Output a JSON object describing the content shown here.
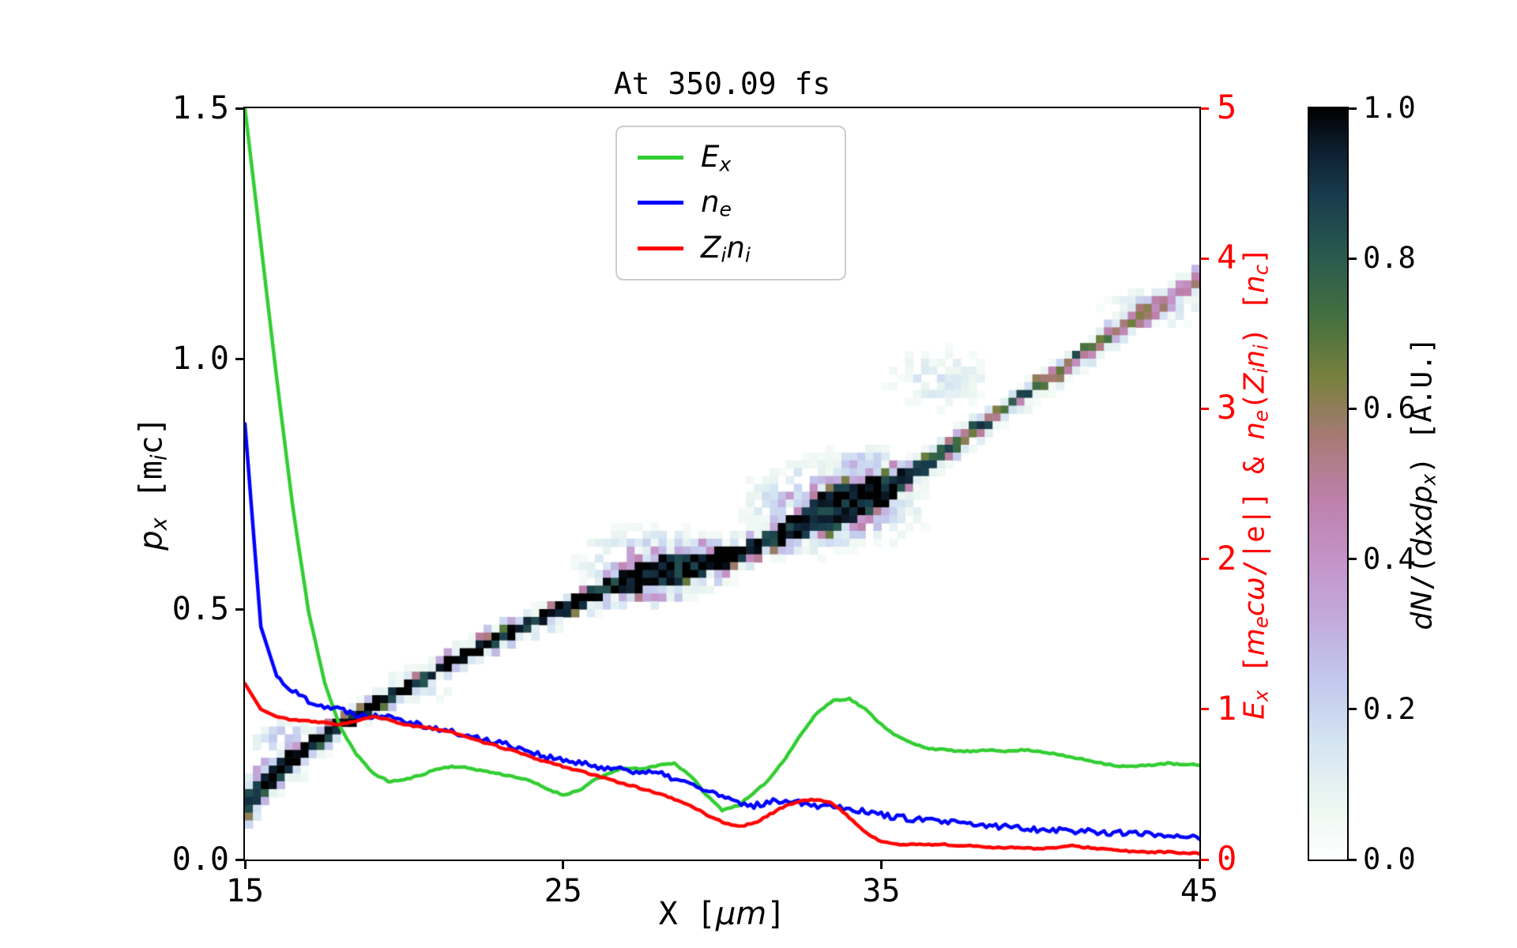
{
  "chart_data": {
    "type": "line+heatmap",
    "title": "At 350.09 fs",
    "axes": {
      "x": {
        "label_plain": "X [μm]",
        "min": 15,
        "max": 45,
        "ticks": [
          {
            "v": 15,
            "label": "15"
          },
          {
            "v": 25,
            "label": "25"
          },
          {
            "v": 35,
            "label": "35"
          },
          {
            "v": 45,
            "label": "45"
          }
        ]
      },
      "y_left": {
        "label_plain": "p_x [m_i c]",
        "min": 0.0,
        "max": 1.5,
        "ticks": [
          {
            "v": 0.0,
            "label": "0.0"
          },
          {
            "v": 0.5,
            "label": "0.5"
          },
          {
            "v": 1.0,
            "label": "1.0"
          },
          {
            "v": 1.5,
            "label": "1.5"
          }
        ]
      },
      "y_right": {
        "label_plain": "E_x [m_e cω/|e|] & n_e(Z_i n_i) [n_c]",
        "min": 0,
        "max": 5,
        "color": "#ff0000",
        "ticks": [
          {
            "v": 0,
            "label": "0"
          },
          {
            "v": 1,
            "label": "1"
          },
          {
            "v": 2,
            "label": "2"
          },
          {
            "v": 3,
            "label": "3"
          },
          {
            "v": 4,
            "label": "4"
          },
          {
            "v": 5,
            "label": "5"
          }
        ]
      }
    },
    "legend": [
      {
        "key": "Ex",
        "color": "#32cd32",
        "parts": [
          {
            "t": "E",
            "i": 1
          },
          {
            "t": "x",
            "i": 1,
            "s": 1
          }
        ]
      },
      {
        "key": "ne",
        "color": "#0000ff",
        "parts": [
          {
            "t": "n",
            "i": 1
          },
          {
            "t": "e",
            "i": 1,
            "s": 1
          }
        ]
      },
      {
        "key": "Zini",
        "color": "#ff0000",
        "parts": [
          {
            "t": "Z",
            "i": 1
          },
          {
            "t": "i",
            "i": 1,
            "s": 1
          },
          {
            "t": "n",
            "i": 1
          },
          {
            "t": "i",
            "i": 1,
            "s": 1
          }
        ]
      }
    ],
    "series": {
      "x": {
        "start": 15,
        "step": 0.5,
        "n": 61
      },
      "axis": "right",
      "list": [
        {
          "name": "Ex",
          "color": "#32cd32",
          "noise": 0.005,
          "values": [
            5.0,
            4.1,
            3.2,
            2.35,
            1.65,
            1.18,
            0.88,
            0.7,
            0.58,
            0.52,
            0.53,
            0.56,
            0.6,
            0.62,
            0.61,
            0.59,
            0.57,
            0.55,
            0.52,
            0.47,
            0.43,
            0.46,
            0.53,
            0.58,
            0.61,
            0.6,
            0.63,
            0.64,
            0.56,
            0.43,
            0.33,
            0.36,
            0.44,
            0.54,
            0.68,
            0.84,
            0.98,
            1.06,
            1.07,
            1.0,
            0.9,
            0.82,
            0.77,
            0.74,
            0.73,
            0.72,
            0.72,
            0.73,
            0.72,
            0.73,
            0.72,
            0.7,
            0.68,
            0.66,
            0.64,
            0.62,
            0.62,
            0.63,
            0.64,
            0.63,
            0.63
          ]
        },
        {
          "name": "ne",
          "color": "#0000ff",
          "noise": 0.02,
          "values": [
            2.9,
            1.55,
            1.22,
            1.12,
            1.06,
            1.02,
            1.0,
            0.97,
            0.95,
            0.97,
            0.93,
            0.9,
            0.87,
            0.85,
            0.82,
            0.8,
            0.78,
            0.75,
            0.72,
            0.68,
            0.66,
            0.64,
            0.62,
            0.61,
            0.6,
            0.58,
            0.57,
            0.54,
            0.5,
            0.46,
            0.42,
            0.37,
            0.36,
            0.38,
            0.4,
            0.38,
            0.36,
            0.36,
            0.34,
            0.32,
            0.3,
            0.28,
            0.27,
            0.26,
            0.25,
            0.24,
            0.23,
            0.22,
            0.22,
            0.21,
            0.2,
            0.2,
            0.19,
            0.19,
            0.18,
            0.18,
            0.17,
            0.17,
            0.16,
            0.16,
            0.15
          ]
        },
        {
          "name": "Zini",
          "color": "#ff0000",
          "noise": 0.005,
          "values": [
            1.17,
            1.0,
            0.95,
            0.93,
            0.92,
            0.91,
            0.9,
            0.92,
            0.95,
            0.93,
            0.9,
            0.88,
            0.87,
            0.85,
            0.81,
            0.78,
            0.75,
            0.72,
            0.68,
            0.65,
            0.62,
            0.59,
            0.56,
            0.53,
            0.5,
            0.47,
            0.44,
            0.4,
            0.36,
            0.3,
            0.25,
            0.22,
            0.24,
            0.3,
            0.36,
            0.39,
            0.4,
            0.37,
            0.28,
            0.18,
            0.12,
            0.1,
            0.1,
            0.1,
            0.1,
            0.09,
            0.09,
            0.08,
            0.08,
            0.08,
            0.07,
            0.08,
            0.09,
            0.08,
            0.07,
            0.06,
            0.05,
            0.05,
            0.05,
            0.04,
            0.04
          ]
        }
      ]
    },
    "heatmap": {
      "x": {
        "start": 15,
        "step": 1,
        "n": 31
      },
      "center": [
        0.115,
        0.175,
        0.225,
        0.27,
        0.305,
        0.34,
        0.375,
        0.41,
        0.445,
        0.475,
        0.5,
        0.53,
        0.555,
        0.575,
        0.585,
        0.6,
        0.625,
        0.655,
        0.69,
        0.715,
        0.73,
        0.77,
        0.815,
        0.86,
        0.905,
        0.95,
        0.995,
        1.04,
        1.08,
        1.12,
        1.16
      ],
      "halfwidth": [
        0.025,
        0.02,
        0.015,
        0.013,
        0.012,
        0.012,
        0.012,
        0.012,
        0.012,
        0.012,
        0.012,
        0.013,
        0.02,
        0.03,
        0.028,
        0.018,
        0.014,
        0.02,
        0.035,
        0.04,
        0.03,
        0.015,
        0.013,
        0.013,
        0.012,
        0.012,
        0.012,
        0.013,
        0.013,
        0.014,
        0.015
      ],
      "intensity": [
        0.92,
        0.96,
        1,
        1,
        1,
        1,
        1,
        1,
        1,
        1,
        1,
        1,
        1,
        1,
        1,
        1,
        1,
        1,
        1,
        1,
        1,
        0.95,
        0.9,
        0.9,
        0.85,
        0.8,
        0.8,
        0.75,
        0.72,
        0.7,
        0.7
      ],
      "blobs": [
        {
          "x": 16.3,
          "p": 0.22,
          "rx": 0.8,
          "ry": 0.05,
          "a": 0.45
        },
        {
          "x": 20.5,
          "p": 0.35,
          "rx": 0.9,
          "ry": 0.03,
          "a": 0.25
        },
        {
          "x": 27.9,
          "p": 0.59,
          "rx": 1.7,
          "ry": 0.05,
          "a": 0.6
        },
        {
          "x": 29.6,
          "p": 0.6,
          "rx": 0.9,
          "ry": 0.025,
          "a": 0.4
        },
        {
          "x": 33.6,
          "p": 0.71,
          "rx": 1.9,
          "ry": 0.06,
          "a": 0.75
        },
        {
          "x": 34.5,
          "p": 0.79,
          "rx": 1.1,
          "ry": 0.03,
          "a": 0.35
        },
        {
          "x": 36.9,
          "p": 0.96,
          "rx": 1.4,
          "ry": 0.05,
          "a": 0.2
        },
        {
          "x": 43.6,
          "p": 1.1,
          "rx": 1.2,
          "ry": 0.03,
          "a": 0.3
        }
      ]
    },
    "colorbar": {
      "label_plain": "dN/(dxdp_x) [A.U.]",
      "min": 0.0,
      "max": 1.0,
      "ticks": [
        {
          "v": 1.0,
          "label": "1.0"
        },
        {
          "v": 0.8,
          "label": "0.8"
        },
        {
          "v": 0.6,
          "label": "0.6"
        },
        {
          "v": 0.4,
          "label": "0.4"
        },
        {
          "v": 0.2,
          "label": "0.2"
        },
        {
          "v": 0.0,
          "label": "0.0"
        }
      ],
      "stops": [
        [
          0.0,
          "#ffffff"
        ],
        [
          0.07,
          "#edf7f2"
        ],
        [
          0.15,
          "#d6e6f2"
        ],
        [
          0.23,
          "#c3cbee"
        ],
        [
          0.31,
          "#c2aede"
        ],
        [
          0.4,
          "#c493c8"
        ],
        [
          0.48,
          "#bd80ab"
        ],
        [
          0.56,
          "#a87a76"
        ],
        [
          0.64,
          "#78803e"
        ],
        [
          0.72,
          "#45713f"
        ],
        [
          0.8,
          "#2a5b4e"
        ],
        [
          0.88,
          "#193d4d"
        ],
        [
          0.94,
          "#0e2133"
        ],
        [
          1.0,
          "#000000"
        ]
      ]
    }
  },
  "labels": {
    "xlabel": [
      {
        "t": "X ["
      },
      {
        "t": "μm",
        "i": 1
      },
      {
        "t": "]"
      }
    ],
    "ylabel_left": [
      {
        "t": "p",
        "i": 1
      },
      {
        "t": "x",
        "i": 1,
        "s": 1
      },
      {
        "t": " [m"
      },
      {
        "t": "i",
        "i": 1,
        "s": 1
      },
      {
        "t": "c]"
      }
    ],
    "ylabel_right": [
      {
        "t": "E",
        "i": 1
      },
      {
        "t": "x",
        "i": 1,
        "s": 1
      },
      {
        "t": " ["
      },
      {
        "t": "m",
        "i": 1
      },
      {
        "t": "e",
        "i": 1,
        "s": 1
      },
      {
        "t": "c",
        "i": 1
      },
      {
        "t": "ω",
        "i": 1
      },
      {
        "t": "/|e|] & "
      },
      {
        "t": "n",
        "i": 1
      },
      {
        "t": "e",
        "i": 1,
        "s": 1
      },
      {
        "t": "("
      },
      {
        "t": "Z",
        "i": 1
      },
      {
        "t": "i",
        "i": 1,
        "s": 1
      },
      {
        "t": "n",
        "i": 1
      },
      {
        "t": "i",
        "i": 1,
        "s": 1
      },
      {
        "t": ") ["
      },
      {
        "t": "n",
        "i": 1
      },
      {
        "t": "c",
        "i": 1,
        "s": 1
      },
      {
        "t": "]"
      }
    ],
    "colorbar": [
      {
        "t": "d",
        "i": 1
      },
      {
        "t": "N",
        "i": 1
      },
      {
        "t": "/("
      },
      {
        "t": "d",
        "i": 1
      },
      {
        "t": "x",
        "i": 1
      },
      {
        "t": "d",
        "i": 1
      },
      {
        "t": "p",
        "i": 1
      },
      {
        "t": "x",
        "i": 1,
        "s": 1
      },
      {
        "t": ") [A.U.]"
      }
    ]
  }
}
